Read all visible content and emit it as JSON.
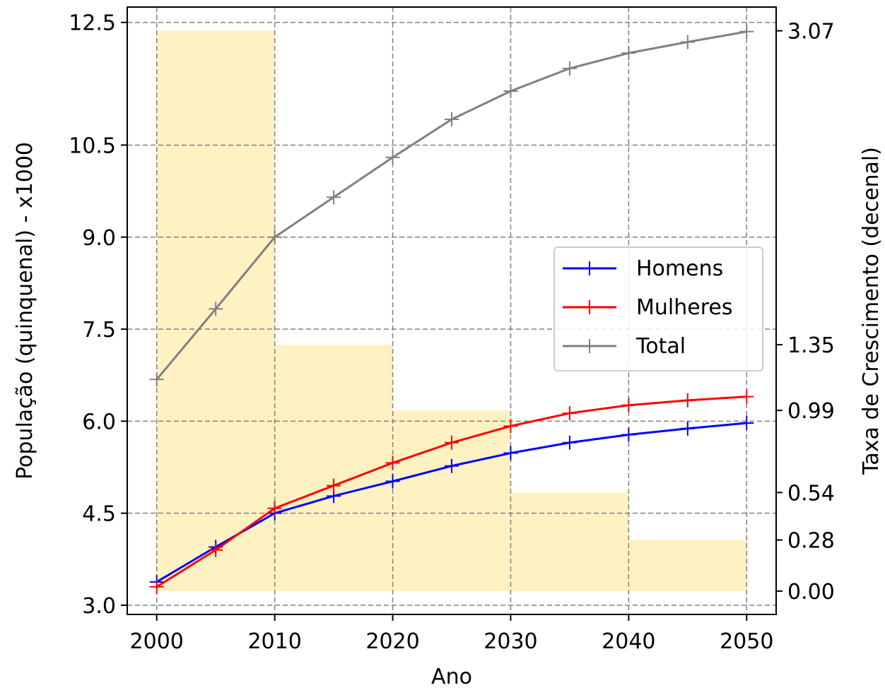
{
  "chart_data": {
    "type": "line",
    "title": "",
    "xlabel": "Ano",
    "ylabel": "População (quinquenal) - x1000",
    "y2label": "Taxa de Crescimento (decenal)",
    "xlim": [
      1997.5,
      2052.5
    ],
    "ylim": [
      2.85,
      12.75
    ],
    "y2lim": [
      -0.128,
      3.2
    ],
    "x_ticks": [
      2000,
      2010,
      2020,
      2030,
      2040,
      2050
    ],
    "y_ticks": [
      3.0,
      4.5,
      6.0,
      7.5,
      9.0,
      10.5,
      12.5
    ],
    "y_tick_labels": [
      "3.0",
      "4.5",
      "6.0",
      "7.5",
      "9.0",
      "10.5",
      "12.5"
    ],
    "y2_ticks": [
      0.0,
      0.28,
      0.54,
      0.99,
      1.35,
      3.07
    ],
    "y2_tick_labels": [
      "0.00",
      "0.28",
      "0.54",
      "0.99",
      "1.35",
      "3.07"
    ],
    "grid": true,
    "legend_position": "center-right",
    "x": [
      2000,
      2005,
      2010,
      2015,
      2020,
      2025,
      2030,
      2035,
      2040,
      2045,
      2050
    ],
    "series": [
      {
        "name": "Homens",
        "color": "#0000ff",
        "marker": "plus",
        "values": [
          3.38,
          3.95,
          4.5,
          4.78,
          5.02,
          5.27,
          5.48,
          5.65,
          5.78,
          5.88,
          5.97
        ]
      },
      {
        "name": "Mulheres",
        "color": "#ff0000",
        "marker": "plus",
        "values": [
          3.3,
          3.9,
          4.58,
          4.95,
          5.32,
          5.65,
          5.92,
          6.13,
          6.26,
          6.34,
          6.4
        ]
      },
      {
        "name": "Total",
        "color": "#808080",
        "marker": "plus",
        "values": [
          6.68,
          7.83,
          9.0,
          9.65,
          10.3,
          10.92,
          11.38,
          11.75,
          12.0,
          12.18,
          12.35
        ]
      }
    ],
    "bars": {
      "axis": "secondary",
      "color": "#fff2c2",
      "intervals": [
        [
          2000,
          2010
        ],
        [
          2010,
          2020
        ],
        [
          2020,
          2030
        ],
        [
          2030,
          2040
        ],
        [
          2040,
          2050
        ]
      ],
      "values": [
        3.07,
        1.35,
        0.99,
        0.54,
        0.28
      ]
    }
  }
}
